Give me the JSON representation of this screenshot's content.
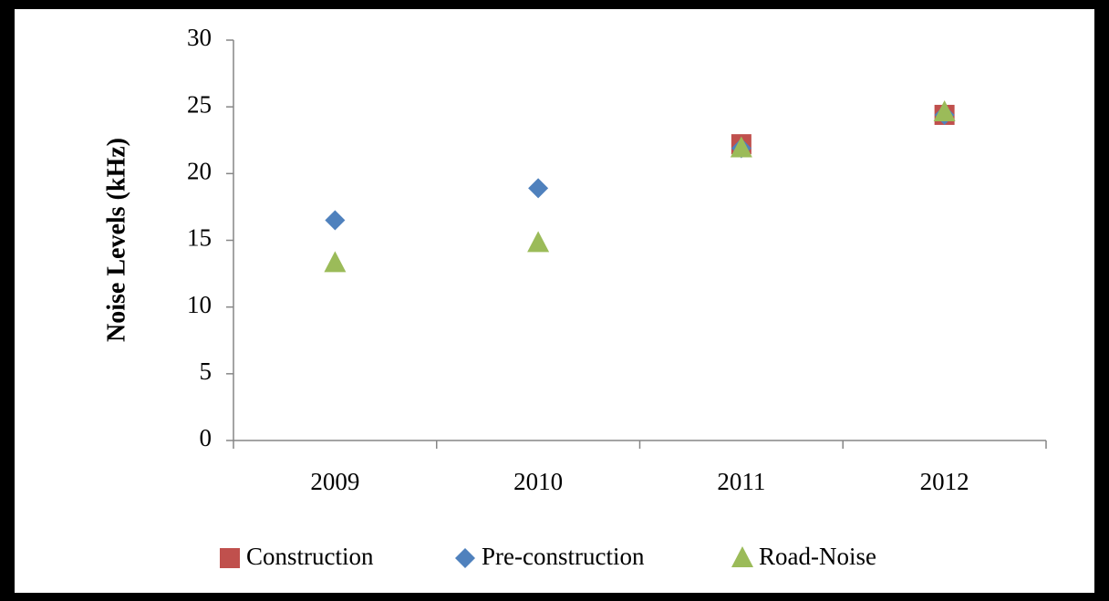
{
  "chart_data": {
    "type": "scatter",
    "y_label": "Noise Levels (kHz)",
    "categories": [
      "2009",
      "2010",
      "2011",
      "2012"
    ],
    "series": [
      {
        "name": "Construction",
        "color": "#c0504d",
        "marker": "square",
        "values": [
          null,
          null,
          22.2,
          24.4
        ]
      },
      {
        "name": "Pre-construction",
        "color": "#4f81bd",
        "marker": "diamond",
        "values": [
          16.5,
          18.9,
          21.9,
          24.4
        ]
      },
      {
        "name": "Road-Noise",
        "color": "#9bbb59",
        "marker": "triangle",
        "values": [
          13.3,
          14.8,
          21.9,
          24.6
        ]
      }
    ],
    "ylim": [
      0,
      30
    ],
    "yticks": [
      0,
      5,
      10,
      15,
      20,
      25,
      30
    ],
    "grid": false,
    "legend": "bottom"
  }
}
